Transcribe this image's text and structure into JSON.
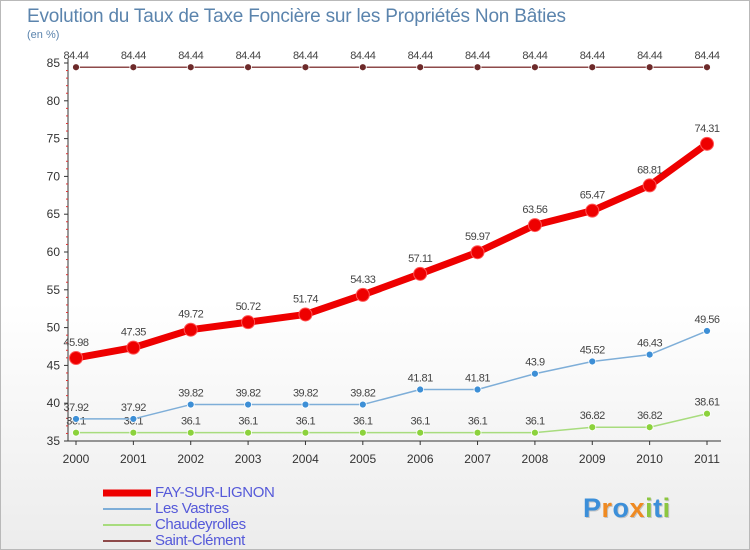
{
  "title": "Evolution du Taux de Taxe Foncière sur les Propriétés Non Bâties",
  "unit_label": "(en %)",
  "logo": {
    "letters": [
      "P",
      "r",
      "o",
      "x",
      "i",
      "t",
      "i"
    ],
    "colors": [
      "#3c8fd9",
      "#ef8a22",
      "#3c8fd9",
      "#ef8a22",
      "#8cc63f",
      "#3c8fd9",
      "#8cc63f"
    ]
  },
  "chart_data": {
    "type": "line",
    "title": "Evolution du Taux de Taxe Foncière sur les Propriétés Non Bâties",
    "ylabel": "(en %)",
    "xlabel": "",
    "categories": [
      "2000",
      "2001",
      "2002",
      "2003",
      "2004",
      "2005",
      "2006",
      "2007",
      "2008",
      "2009",
      "2010",
      "2011"
    ],
    "ylim": [
      35,
      85
    ],
    "yticks": [
      35,
      40,
      45,
      50,
      55,
      60,
      65,
      70,
      75,
      80,
      85
    ],
    "grid": false,
    "legend_position": "bottom-left",
    "series": [
      {
        "name": "FAY-SUR-LIGNON",
        "color": "#ee0000",
        "marker_color": "#ee0000",
        "values": [
          45.98,
          47.35,
          49.72,
          50.72,
          51.74,
          54.33,
          57.11,
          59.97,
          63.56,
          65.47,
          68.81,
          74.31
        ],
        "labels": [
          "45.98",
          "47.35",
          "49.72",
          "50.72",
          "51.74",
          "54.33",
          "57.11",
          "59.97",
          "63.56",
          "65.47",
          "68.81",
          "74.31"
        ]
      },
      {
        "name": "Les Vastres",
        "color": "#7eaed8",
        "marker_color": "#3d8fd6",
        "values": [
          37.92,
          37.92,
          39.82,
          39.82,
          39.82,
          39.82,
          41.81,
          41.81,
          43.9,
          45.52,
          46.43,
          49.56
        ],
        "labels": [
          "37.92",
          "37.92",
          "39.82",
          "39.82",
          "39.82",
          "39.82",
          "41.81",
          "41.81",
          "43.9",
          "45.52",
          "46.43",
          "49.56"
        ]
      },
      {
        "name": "Chaudeyrolles",
        "color": "#a8dc7e",
        "marker_color": "#8cd23c",
        "values": [
          36.1,
          36.1,
          36.1,
          36.1,
          36.1,
          36.1,
          36.1,
          36.1,
          36.1,
          36.82,
          36.82,
          38.61
        ],
        "labels": [
          "36.1",
          "36.1",
          "36.1",
          "36.1",
          "36.1",
          "36.1",
          "36.1",
          "36.1",
          "36.1",
          "36.82",
          "36.82",
          "38.61"
        ]
      },
      {
        "name": "Saint-Clément",
        "color": "#8e4a4a",
        "marker_color": "#6d2a2a",
        "values": [
          84.44,
          84.44,
          84.44,
          84.44,
          84.44,
          84.44,
          84.44,
          84.44,
          84.44,
          84.44,
          84.44,
          84.44
        ],
        "labels": [
          "84.44",
          "84.44",
          "84.44",
          "84.44",
          "84.44",
          "84.44",
          "84.44",
          "84.44",
          "84.44",
          "84.44",
          "84.44",
          "84.44"
        ]
      }
    ]
  }
}
